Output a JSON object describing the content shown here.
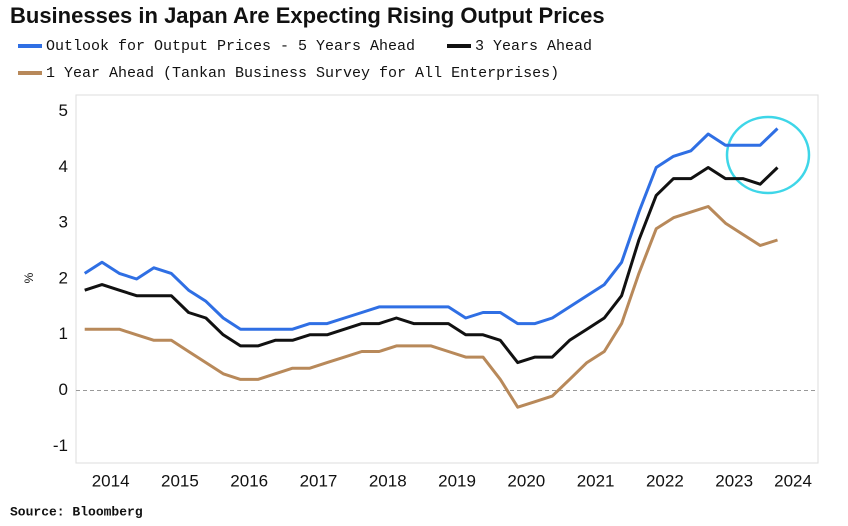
{
  "chart_data": {
    "type": "line",
    "title": "Businesses in Japan Are Expecting Rising Output Prices",
    "y_label": "%",
    "source": "Source: Bloomberg",
    "x": [
      2014.125,
      2014.375,
      2014.625,
      2014.875,
      2015.125,
      2015.375,
      2015.625,
      2015.875,
      2016.125,
      2016.375,
      2016.625,
      2016.875,
      2017.125,
      2017.375,
      2017.625,
      2017.875,
      2018.125,
      2018.375,
      2018.625,
      2018.875,
      2019.125,
      2019.375,
      2019.625,
      2019.875,
      2020.125,
      2020.375,
      2020.625,
      2020.875,
      2021.125,
      2021.375,
      2021.625,
      2021.875,
      2022.125,
      2022.375,
      2022.625,
      2022.875,
      2023.125,
      2023.375,
      2023.625,
      2023.875,
      2024.125
    ],
    "series": [
      {
        "name": "Outlook for Output Prices - 5 Years Ahead",
        "color": "#2f6fe4",
        "values": [
          2.1,
          2.3,
          2.1,
          2.0,
          2.2,
          2.1,
          1.8,
          1.6,
          1.3,
          1.1,
          1.1,
          1.1,
          1.1,
          1.2,
          1.2,
          1.3,
          1.4,
          1.5,
          1.5,
          1.5,
          1.5,
          1.5,
          1.3,
          1.4,
          1.4,
          1.2,
          1.2,
          1.3,
          1.5,
          1.7,
          1.9,
          2.3,
          3.2,
          4.0,
          4.2,
          4.3,
          4.6,
          4.4,
          4.4,
          4.4,
          4.7
        ]
      },
      {
        "name": "3 Years Ahead",
        "color": "#111111",
        "values": [
          1.8,
          1.9,
          1.8,
          1.7,
          1.7,
          1.7,
          1.4,
          1.3,
          1.0,
          0.8,
          0.8,
          0.9,
          0.9,
          1.0,
          1.0,
          1.1,
          1.2,
          1.2,
          1.3,
          1.2,
          1.2,
          1.2,
          1.0,
          1.0,
          0.9,
          0.5,
          0.6,
          0.6,
          0.9,
          1.1,
          1.3,
          1.7,
          2.7,
          3.5,
          3.8,
          3.8,
          4.0,
          3.8,
          3.8,
          3.7,
          4.0
        ]
      },
      {
        "name": "1 Year Ahead (Tankan Business Survey for All Enterprises)",
        "color": "#b8895a",
        "values": [
          1.1,
          1.1,
          1.1,
          1.0,
          0.9,
          0.9,
          0.7,
          0.5,
          0.3,
          0.2,
          0.2,
          0.3,
          0.4,
          0.4,
          0.5,
          0.6,
          0.7,
          0.7,
          0.8,
          0.8,
          0.8,
          0.7,
          0.6,
          0.6,
          0.2,
          -0.3,
          -0.2,
          -0.1,
          0.2,
          0.5,
          0.7,
          1.2,
          2.1,
          2.9,
          3.1,
          3.2,
          3.3,
          3.0,
          2.8,
          2.6,
          2.7
        ]
      }
    ],
    "xlim": [
      2014,
      2024.71
    ],
    "xticks": [
      {
        "value": 2014.5,
        "label": "2014"
      },
      {
        "value": 2015.5,
        "label": "2015"
      },
      {
        "value": 2016.5,
        "label": "2016"
      },
      {
        "value": 2017.5,
        "label": "2017"
      },
      {
        "value": 2018.5,
        "label": "2018"
      },
      {
        "value": 2019.5,
        "label": "2019"
      },
      {
        "value": 2020.5,
        "label": "2020"
      },
      {
        "value": 2021.5,
        "label": "2021"
      },
      {
        "value": 2022.5,
        "label": "2022"
      },
      {
        "value": 2023.5,
        "label": "2023"
      },
      {
        "value": 2024.35,
        "label": "2024"
      }
    ],
    "ylim": [
      -1.3,
      5.3
    ],
    "yticks": [
      -1,
      0,
      1,
      2,
      3,
      4,
      5
    ],
    "grid": false
  }
}
